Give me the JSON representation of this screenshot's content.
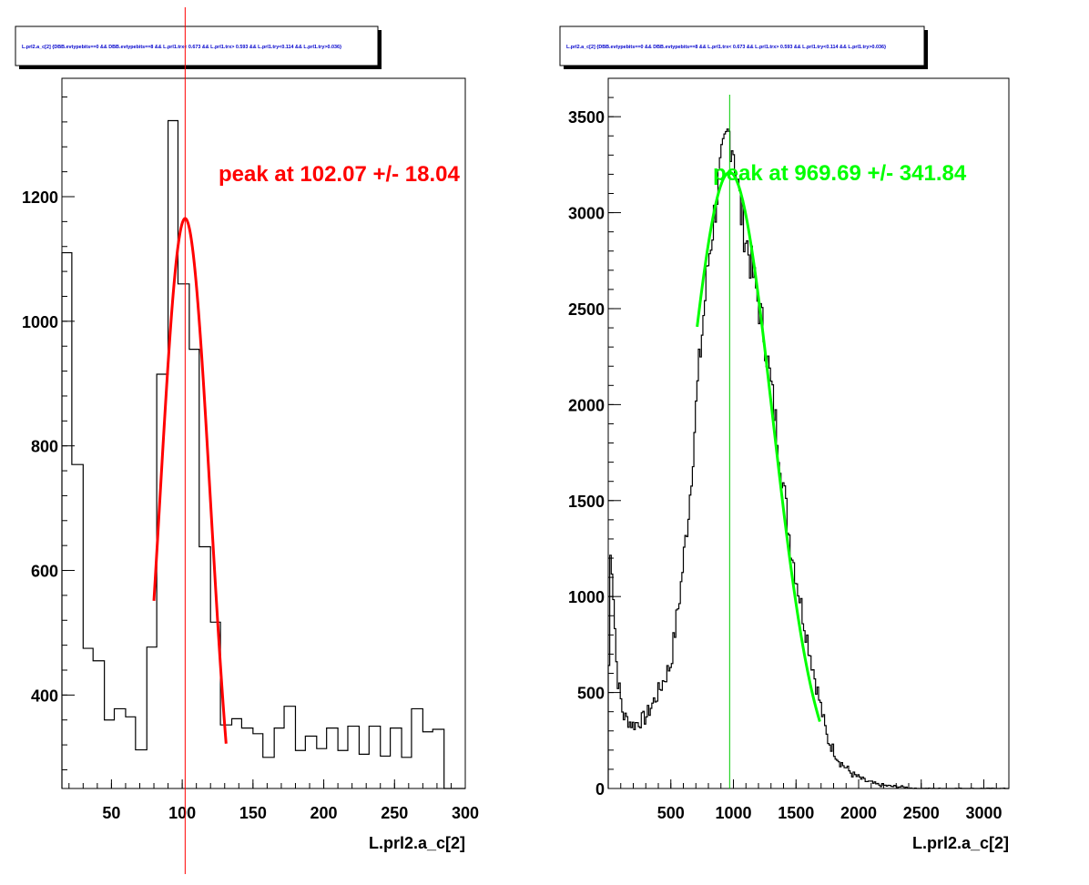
{
  "chart_data": [
    {
      "type": "histogram",
      "title": "L.prl2.a_c[2] {DBB.evtypebits==0 && DBB.evtypebits==8 &&  L.prl1.trx< 0.673 && L.prl1.trx> 0.593 && L.prl1.try<0.114 && L.prl1.try>0.036}",
      "xlabel": "L.prl2.a_c[2]",
      "ylabel": "",
      "xlim": [
        15,
        300
      ],
      "ylim": [
        250,
        1390
      ],
      "x_ticks": [
        50,
        100,
        150,
        200,
        250,
        300
      ],
      "y_ticks": [
        400,
        600,
        800,
        1000,
        1200
      ],
      "bin_edges": [
        15,
        22,
        30,
        37,
        45,
        52,
        60,
        67,
        75,
        82,
        90,
        97,
        105,
        112,
        120,
        127,
        135,
        142,
        150,
        157,
        165,
        172,
        180,
        187,
        195,
        202,
        210,
        217,
        225,
        232,
        240,
        247,
        255,
        262,
        270,
        277,
        285,
        292,
        300
      ],
      "bin_values": [
        1110,
        770,
        475,
        455,
        360,
        378,
        365,
        312,
        477,
        915,
        1322,
        1060,
        955,
        638,
        517,
        352,
        362,
        347,
        338,
        300,
        347,
        382,
        311,
        334,
        314,
        347,
        311,
        350,
        305,
        350,
        302,
        347,
        300,
        378,
        341,
        345,
        0,
        0
      ],
      "fit": {
        "mean": 102.07,
        "sigma": 18.04,
        "amplitude": 1165,
        "x_range": [
          80,
          131
        ]
      },
      "marker_x": 102.07,
      "annotation": "peak at 102.07 +/- 18.04",
      "colors": {
        "fit": "#ff0000",
        "marker": "#ff0000",
        "annotation": "#ff0000",
        "histogram": "#000000"
      }
    },
    {
      "type": "histogram",
      "title": "L.prl2.a_c[2] {DBB.evtypebits==0 && DBB.evtypebits==8 &&  L.prl1.trx< 0.673 && L.prl1.trx> 0.593 && L.prl1.try<0.114 && L.prl1.try>0.036}",
      "xlabel": "L.prl2.a_c[2]",
      "ylabel": "",
      "xlim": [
        0,
        3200
      ],
      "ylim": [
        0,
        3700
      ],
      "x_ticks": [
        500,
        1000,
        1500,
        2000,
        2500,
        3000
      ],
      "y_ticks": [
        0,
        500,
        1000,
        1500,
        2000,
        2500,
        3000,
        3500
      ],
      "bin_width": 12,
      "control_points": [
        [
          0,
          360
        ],
        [
          20,
          1300
        ],
        [
          40,
          1050
        ],
        [
          70,
          600
        ],
        [
          120,
          380
        ],
        [
          200,
          330
        ],
        [
          300,
          370
        ],
        [
          400,
          500
        ],
        [
          500,
          650
        ],
        [
          580,
          1050
        ],
        [
          650,
          1500
        ],
        [
          720,
          2150
        ],
        [
          800,
          2750
        ],
        [
          880,
          3150
        ],
        [
          960,
          3420
        ],
        [
          1000,
          3350
        ],
        [
          1060,
          3000
        ],
        [
          1150,
          2700
        ],
        [
          1250,
          2350
        ],
        [
          1350,
          1850
        ],
        [
          1450,
          1300
        ],
        [
          1550,
          920
        ],
        [
          1650,
          580
        ],
        [
          1750,
          260
        ],
        [
          1850,
          140
        ],
        [
          1950,
          75
        ],
        [
          2050,
          40
        ],
        [
          2150,
          20
        ],
        [
          2250,
          12
        ],
        [
          2350,
          8
        ],
        [
          2450,
          0
        ]
      ],
      "fit": {
        "mean": 969.69,
        "sigma": 341.84,
        "amplitude": 3210,
        "x_range": [
          710,
          1690
        ]
      },
      "marker_x": 969.69,
      "annotation": "peak at 969.69 +/- 341.84",
      "colors": {
        "fit": "#00ff00",
        "marker": "#00cc00",
        "annotation": "#00ff00",
        "histogram": "#000000"
      }
    }
  ]
}
